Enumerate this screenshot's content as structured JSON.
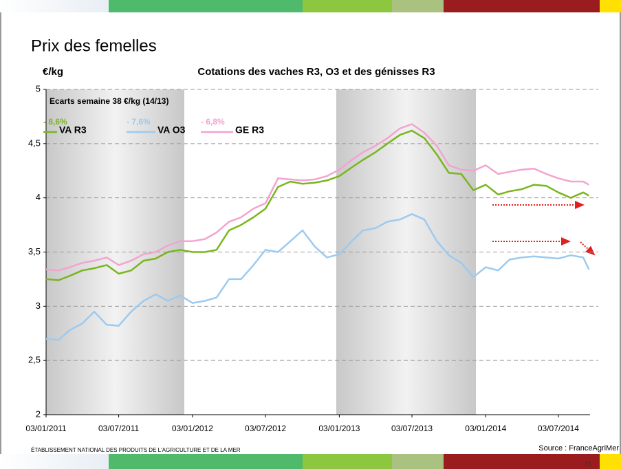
{
  "header": {
    "title": "Prix des femelles"
  },
  "chart_data": {
    "type": "line",
    "title": "Cotations des vaches R3, O3 et des génisses R3",
    "y_label": "€/kg",
    "annotation": "Ecarts semaine 38 €/kg (14/13)",
    "x": [
      "2011-01-03",
      "2011-02-03",
      "2011-03-03",
      "2011-04-03",
      "2011-05-03",
      "2011-06-03",
      "2011-07-03",
      "2011-08-03",
      "2011-09-03",
      "2011-10-03",
      "2011-11-03",
      "2011-12-03",
      "2012-01-03",
      "2012-02-03",
      "2012-03-03",
      "2012-04-03",
      "2012-05-03",
      "2012-06-03",
      "2012-07-03",
      "2012-08-03",
      "2012-09-03",
      "2012-10-03",
      "2012-11-03",
      "2012-12-03",
      "2013-01-03",
      "2013-02-03",
      "2013-03-03",
      "2013-04-03",
      "2013-05-03",
      "2013-06-03",
      "2013-07-03",
      "2013-08-03",
      "2013-09-03",
      "2013-10-03",
      "2013-11-03",
      "2013-12-03",
      "2014-01-03",
      "2014-02-03",
      "2014-03-03",
      "2014-04-03",
      "2014-05-03",
      "2014-06-03",
      "2014-07-03",
      "2014-08-03",
      "2014-09-03",
      "2014-09-17"
    ],
    "series": [
      {
        "name": "VA R3",
        "change": "- 8,6%",
        "color": "#7ab51d",
        "values": [
          3.25,
          3.24,
          3.28,
          3.33,
          3.35,
          3.38,
          3.3,
          3.33,
          3.42,
          3.44,
          3.5,
          3.52,
          3.5,
          3.5,
          3.52,
          3.7,
          3.75,
          3.82,
          3.9,
          4.1,
          4.15,
          4.13,
          4.14,
          4.16,
          4.2,
          4.28,
          4.35,
          4.42,
          4.5,
          4.58,
          4.62,
          4.55,
          4.4,
          4.23,
          4.22,
          4.07,
          4.12,
          4.03,
          4.06,
          4.08,
          4.12,
          4.11,
          4.05,
          4.0,
          4.05,
          4.02
        ]
      },
      {
        "name": "VA O3",
        "change": "- 7,6%",
        "color": "#9ccaf0",
        "values": [
          2.7,
          2.69,
          2.78,
          2.84,
          2.95,
          2.83,
          2.82,
          2.95,
          3.05,
          3.11,
          3.05,
          3.1,
          3.03,
          3.05,
          3.08,
          3.25,
          3.25,
          3.38,
          3.52,
          3.5,
          3.6,
          3.7,
          3.55,
          3.45,
          3.48,
          3.6,
          3.7,
          3.72,
          3.78,
          3.8,
          3.85,
          3.8,
          3.6,
          3.47,
          3.4,
          3.27,
          3.36,
          3.33,
          3.43,
          3.45,
          3.46,
          3.45,
          3.44,
          3.47,
          3.45,
          3.34
        ]
      },
      {
        "name": "GE R3",
        "change": "- 6,8%",
        "color": "#f4a3d0",
        "values": [
          3.34,
          3.33,
          3.36,
          3.4,
          3.42,
          3.45,
          3.38,
          3.42,
          3.48,
          3.5,
          3.56,
          3.6,
          3.6,
          3.62,
          3.68,
          3.78,
          3.82,
          3.9,
          3.95,
          4.18,
          4.17,
          4.16,
          4.17,
          4.2,
          4.26,
          4.35,
          4.42,
          4.48,
          4.55,
          4.64,
          4.68,
          4.6,
          4.48,
          4.3,
          4.26,
          4.25,
          4.3,
          4.22,
          4.24,
          4.26,
          4.27,
          4.22,
          4.18,
          4.15,
          4.15,
          4.12
        ]
      }
    ],
    "xlim": [
      "2011-01-03",
      "2014-09-20"
    ],
    "xticks": [
      {
        "value": "2011-01-03",
        "label": "03/01/2011"
      },
      {
        "value": "2011-07-03",
        "label": "03/07/2011"
      },
      {
        "value": "2012-01-03",
        "label": "03/01/2012"
      },
      {
        "value": "2012-07-03",
        "label": "03/07/2012"
      },
      {
        "value": "2013-01-03",
        "label": "03/01/2013"
      },
      {
        "value": "2013-07-03",
        "label": "03/07/2013"
      },
      {
        "value": "2014-01-03",
        "label": "03/01/2014"
      },
      {
        "value": "2014-07-03",
        "label": "03/07/2014"
      }
    ],
    "ylim": [
      2,
      5
    ],
    "yticks": [
      2,
      {
        "value": 2.5,
        "label": "2,5"
      },
      3,
      {
        "value": 3.5,
        "label": "3,5"
      },
      4,
      {
        "value": 4.5,
        "label": "4,5"
      },
      5
    ],
    "grid": true
  },
  "footer": {
    "institution": "ÉTABLISSEMENT NATIONAL DES PRODUITS DE L'AGRICULTURE ET DE LA MER",
    "source": "Source : FranceAgriMer",
    "page": "23"
  }
}
